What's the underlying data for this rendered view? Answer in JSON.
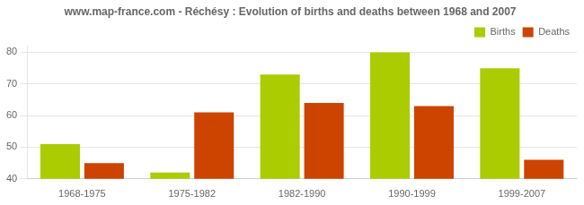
{
  "chart_data": {
    "type": "bar",
    "title": "www.map-france.com - Réchésy : Evolution of births and deaths between 1968 and 2007",
    "categories": [
      "1968-1975",
      "1975-1982",
      "1982-1990",
      "1990-1999",
      "1999-2007"
    ],
    "series": [
      {
        "name": "Births",
        "color": "#aacc00",
        "values": [
          51,
          42,
          73,
          80,
          75
        ]
      },
      {
        "name": "Deaths",
        "color": "#cc4400",
        "values": [
          45,
          61,
          64,
          63,
          46
        ]
      }
    ],
    "ylim": [
      40,
      82
    ],
    "yticks": [
      40,
      50,
      60,
      70,
      80
    ],
    "grid": true,
    "legend": "upper right"
  }
}
